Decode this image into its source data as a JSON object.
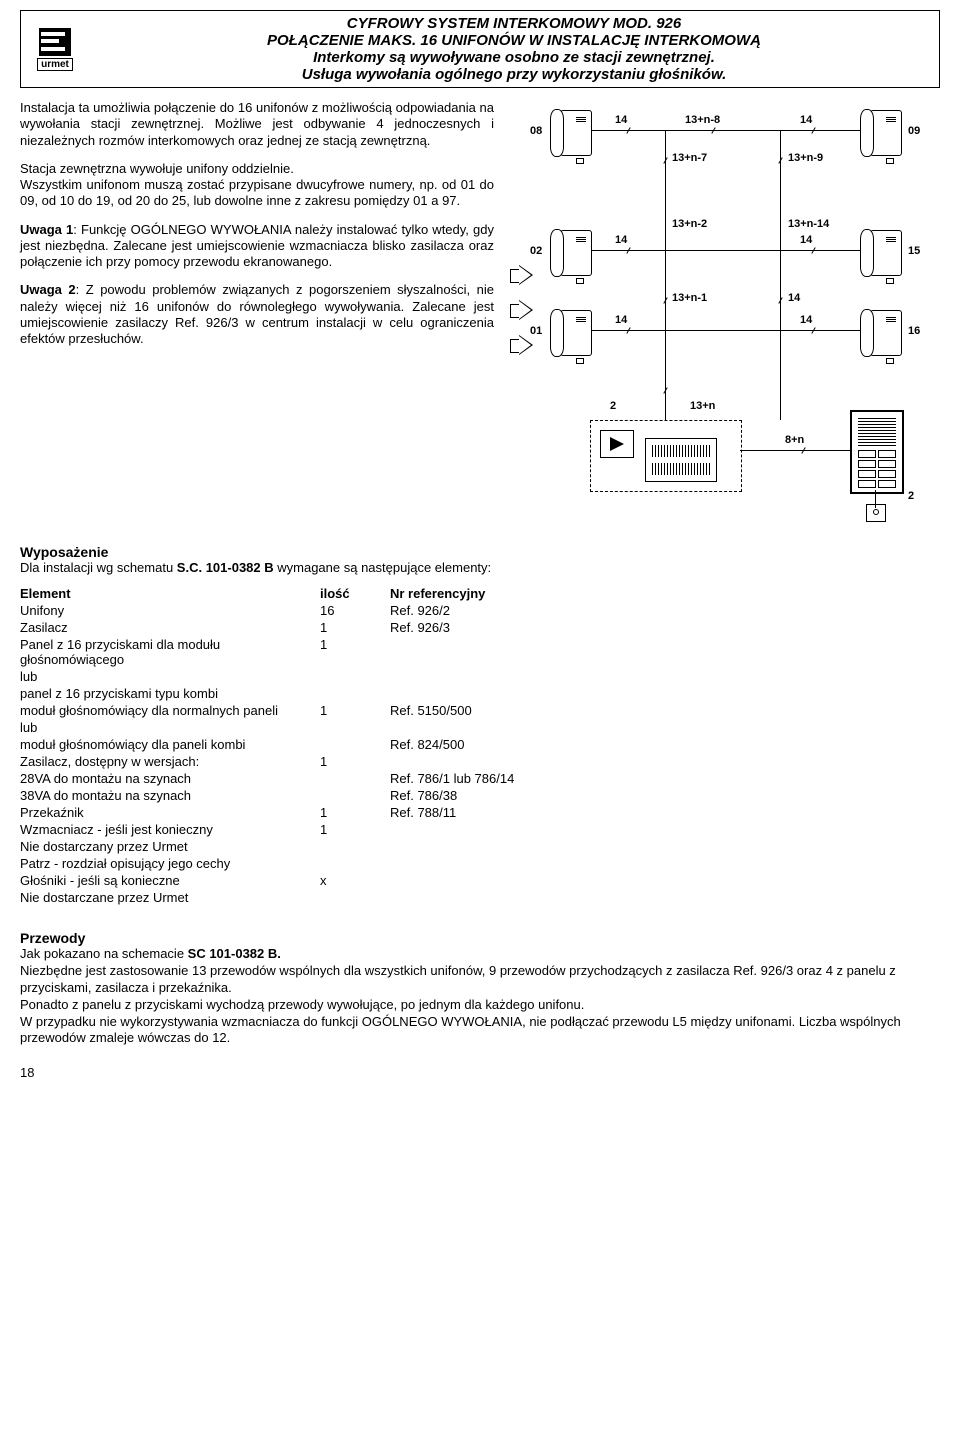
{
  "logo_text": "urmet",
  "header": {
    "line1": "CYFROWY SYSTEM INTERKOMOWY MOD. 926",
    "line2": "POŁĄCZENIE MAKS. 16 UNIFONÓW W INSTALACJĘ INTERKOMOWĄ",
    "line3": "Interkomy są wywoływane osobno ze stacji zewnętrznej.",
    "line4": "Usługa wywołania ogólnego przy wykorzystaniu głośników."
  },
  "body": {
    "p1": "Instalacja ta umożliwia połączenie do 16 unifonów z możliwością odpowiadania na wywołania stacji zewnętrznej. Możliwe jest odbywanie 4 jednoczesnych i niezależnych rozmów interkomowych oraz jednej ze stacją zewnętrzną.",
    "p2": "Stacja zewnętrzna wywołuje unifony oddzielnie.",
    "p3": "Wszystkim unifonom muszą zostać przypisane dwucyfrowe numery, np. od 01 do 09, od 10 do 19, od 20 do 25, lub dowolne inne z zakresu pomiędzy 01 a 97.",
    "p4_b": "Uwaga 1",
    "p4": ": Funkcję OGÓLNEGO WYWOŁANIA należy instalować tylko wtedy, gdy jest niezbędna. Zalecane jest umiejscowienie wzmacniacza blisko zasilacza oraz połączenie ich przy pomocy przewodu ekranowanego.",
    "p5_b": "Uwaga 2",
    "p5": ": Z powodu problemów związanych z pogorszeniem słyszalności, nie należy więcej niż 16 unifonów do równoległego wywoływania. Zalecane jest umiejscowienie zasilaczy  Ref. 926/3 w centrum instalacji w celu ograniczenia efektów przesłuchów."
  },
  "diagram": {
    "n08": "08",
    "n09": "09",
    "n02": "02",
    "n15": "15",
    "n01": "01",
    "n16": "16",
    "w14": "14",
    "w13n8": "13+n-8",
    "w13n7": "13+n-7",
    "w13n9": "13+n-9",
    "w13n2": "13+n-2",
    "w13n14": "13+n-14",
    "w13n1": "13+n-1",
    "w13n": "13+n",
    "w8n": "8+n",
    "n2": "2",
    "nterm": "2"
  },
  "equipment": {
    "title": "Wyposażenie",
    "intro_a": "Dla instalacji wg schematu ",
    "intro_b": "S.C. 101-0382 B",
    "intro_c": " wymagane są następujące elementy:",
    "cols": {
      "element": "Element",
      "qty": "ilość",
      "ref": "Nr referencyjny"
    },
    "rows": [
      {
        "name": "Unifony",
        "qty": "16",
        "ref": "Ref. 926/2"
      },
      {
        "name": "Zasilacz",
        "qty": "1",
        "ref": "Ref. 926/3"
      },
      {
        "name": "Panel z 16 przyciskami dla modułu głośnomówiącego",
        "qty": "1",
        "ref": ""
      },
      {
        "name": "lub",
        "qty": "",
        "ref": ""
      },
      {
        "name": "panel  z 16 przyciskami typu kombi",
        "qty": "",
        "ref": ""
      },
      {
        "name": "moduł głośnomówiący dla normalnych paneli",
        "qty": "1",
        "ref": "Ref. 5150/500"
      },
      {
        "name": "lub",
        "qty": "",
        "ref": ""
      },
      {
        "name": "moduł głośnomówiący dla paneli kombi",
        "qty": "",
        "ref": "Ref. 824/500"
      },
      {
        "name": "Zasilacz, dostępny w wersjach:",
        "qty": "1",
        "ref": ""
      },
      {
        "name": "28VA do montażu na szynach",
        "qty": "",
        "ref": "Ref. 786/1 lub 786/14"
      },
      {
        "name": "38VA do montażu na szynach",
        "qty": "",
        "ref": "Ref. 786/38"
      },
      {
        "name": "Przekaźnik",
        "qty": "1",
        "ref": "Ref. 788/11"
      },
      {
        "name": "Wzmacniacz - jeśli jest konieczny",
        "qty": "1",
        "ref": ""
      },
      {
        "name": "Nie dostarczany przez Urmet",
        "qty": "",
        "ref": ""
      },
      {
        "name": "Patrz - rozdział opisujący jego cechy",
        "qty": "",
        "ref": ""
      },
      {
        "name": "Głośniki - jeśli są konieczne",
        "qty": "x",
        "ref": ""
      },
      {
        "name": "Nie dostarczane przez Urmet",
        "qty": "",
        "ref": ""
      }
    ]
  },
  "wires": {
    "title": "Przewody",
    "l1_a": "Jak pokazano na schemacie ",
    "l1_b": "SC 101-0382 B.",
    "l2": "Niezbędne jest zastosowanie 13 przewodów wspólnych dla wszystkich unifonów, 9 przewodów przychodzących z zasilacza Ref. 926/3 oraz 4 z panelu z przyciskami, zasilacza i przekaźnika.",
    "l3": "Ponadto z panelu z przyciskami wychodzą przewody wywołujące, po jednym dla każdego unifonu.",
    "l4": "W przypadku nie wykorzystywania wzmacniacza do funkcji OGÓLNEGO WYWOŁANIA, nie podłączać przewodu L5 między unifonami. Liczba wspólnych przewodów zmaleje wówczas do 12."
  },
  "page_number": "18"
}
